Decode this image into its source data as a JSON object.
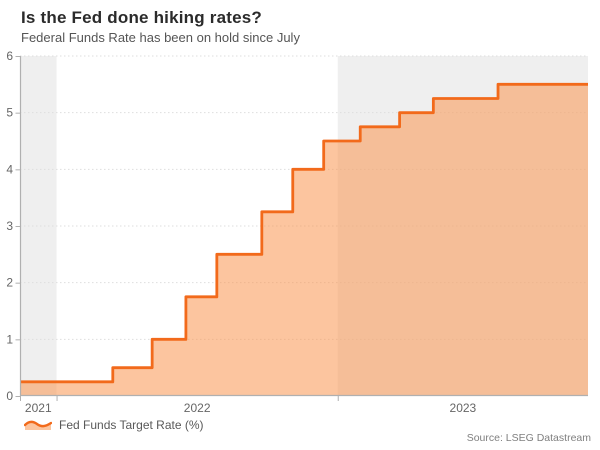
{
  "header": {
    "title": "Is the Fed done hiking rates?",
    "subtitle": "Federal Funds Rate has been on hold since July"
  },
  "chart_data": {
    "type": "area",
    "step": true,
    "title": "Is the Fed done hiking rates?",
    "subtitle": "Federal Funds Rate has been on hold since July",
    "xlabel": "",
    "ylabel": "",
    "ylim": [
      0,
      6
    ],
    "y_ticks": [
      0,
      1,
      2,
      3,
      4,
      5,
      6
    ],
    "x_start": 2021.87,
    "x_end": 2023.89,
    "grid": "horizontal-dotted",
    "legend_position": "bottom-left",
    "series": [
      {
        "name": "Fed Funds Target Rate (%)",
        "points": [
          {
            "x": 2021.87,
            "y": 0.25
          },
          {
            "x": 2022.2,
            "y": 0.5
          },
          {
            "x": 2022.34,
            "y": 1.0
          },
          {
            "x": 2022.46,
            "y": 1.75
          },
          {
            "x": 2022.57,
            "y": 2.5
          },
          {
            "x": 2022.73,
            "y": 3.25
          },
          {
            "x": 2022.84,
            "y": 4.0
          },
          {
            "x": 2022.95,
            "y": 4.5
          },
          {
            "x": 2023.08,
            "y": 4.75
          },
          {
            "x": 2023.22,
            "y": 5.0
          },
          {
            "x": 2023.34,
            "y": 5.25
          },
          {
            "x": 2023.57,
            "y": 5.5
          }
        ]
      }
    ],
    "x_ticks": [
      {
        "label": "2021",
        "start": 2021.87,
        "end": 2022.0
      },
      {
        "label": "2022",
        "start": 2022.0,
        "end": 2023.0
      },
      {
        "label": "2023",
        "start": 2023.0,
        "end": 2023.89
      }
    ],
    "shaded_bands": [
      {
        "start": 2021.87,
        "end": 2022.0
      },
      {
        "start": 2023.0,
        "end": 2023.89
      }
    ],
    "colors": {
      "line": "#f26a1b",
      "fill": "rgba(250,150,80,0.55)",
      "band": "#efefef",
      "grid": "#dedede",
      "axis": "#b0b0b0",
      "tick_text": "#666666"
    }
  },
  "legend": {
    "label": "Fed Funds Target Rate (%)"
  },
  "footer": {
    "source": "Source: LSEG Datastream"
  }
}
